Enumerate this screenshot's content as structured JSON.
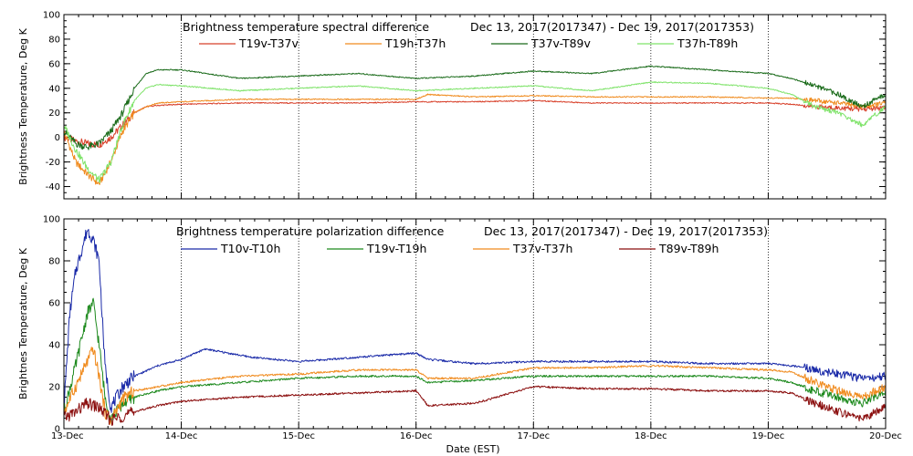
{
  "chart_data": [
    {
      "type": "line",
      "title": "Brightness temperature spectral difference",
      "date_range": "Dec 13, 2017(2017347) - Dec 19, 2017(2017353)",
      "ylabel": "Brightness Temperature, Deg K",
      "xlabel": "",
      "ylim": [
        -50,
        100
      ],
      "yticks": [
        -40,
        -20,
        0,
        20,
        40,
        60,
        80,
        100
      ],
      "xlim": [
        0,
        7
      ],
      "grid": true,
      "legend_position": "top",
      "series": [
        {
          "name": "T19v-T37v",
          "color": "#d8402a",
          "x": [
            0,
            0.1,
            0.2,
            0.3,
            0.4,
            0.5,
            0.6,
            0.7,
            0.8,
            1,
            1.5,
            2,
            2.5,
            3,
            3.5,
            4,
            4.5,
            5,
            5.5,
            6,
            6.2,
            6.4,
            6.6,
            6.8,
            7
          ],
          "y": [
            0,
            -3,
            -5,
            -6,
            0,
            10,
            20,
            25,
            26,
            27,
            28,
            28,
            28,
            29,
            29,
            30,
            28,
            28,
            28,
            28,
            27,
            25,
            24,
            23,
            24
          ]
        },
        {
          "name": "T19h-T37h",
          "color": "#f08b1e",
          "x": [
            0,
            0.1,
            0.2,
            0.3,
            0.4,
            0.5,
            0.6,
            0.7,
            0.8,
            1,
            1.5,
            2,
            2.5,
            3,
            3.1,
            3.5,
            4,
            4.5,
            5,
            5.5,
            6,
            6.2,
            6.4,
            6.6,
            6.8,
            7
          ],
          "y": [
            5,
            -20,
            -30,
            -38,
            -20,
            5,
            20,
            25,
            28,
            29,
            31,
            31,
            31,
            31,
            35,
            33,
            34,
            33,
            33,
            33,
            32,
            32,
            30,
            28,
            25,
            28
          ]
        },
        {
          "name": "T37v-T89v",
          "color": "#1a6b1a",
          "x": [
            0,
            0.1,
            0.2,
            0.3,
            0.4,
            0.5,
            0.6,
            0.7,
            0.8,
            1,
            1.5,
            2,
            2.5,
            3,
            3.5,
            4,
            4.5,
            5,
            5.5,
            6,
            6.2,
            6.4,
            6.6,
            6.8,
            7
          ],
          "y": [
            5,
            -5,
            -8,
            -5,
            5,
            20,
            40,
            52,
            55,
            55,
            48,
            50,
            52,
            48,
            50,
            54,
            52,
            58,
            55,
            52,
            48,
            42,
            35,
            25,
            35
          ]
        },
        {
          "name": "T37h-T89h",
          "color": "#7fe36a",
          "x": [
            0,
            0.1,
            0.2,
            0.3,
            0.4,
            0.5,
            0.6,
            0.7,
            0.8,
            1,
            1.5,
            2,
            2.5,
            3,
            3.5,
            4,
            4.5,
            5,
            5.5,
            6,
            6.2,
            6.4,
            6.6,
            6.8,
            7
          ],
          "y": [
            10,
            -10,
            -25,
            -35,
            -20,
            10,
            30,
            40,
            43,
            42,
            38,
            40,
            42,
            38,
            40,
            42,
            38,
            45,
            44,
            40,
            35,
            25,
            20,
            10,
            25
          ]
        }
      ]
    },
    {
      "type": "line",
      "title": "Brightness temperature polarization difference",
      "date_range": "Dec 13, 2017(2017347) - Dec 19, 2017(2017353)",
      "ylabel": "Brightnes Temperature, Deg K",
      "xlabel": "Date (EST)",
      "ylim": [
        0,
        100
      ],
      "yticks": [
        0,
        20,
        40,
        60,
        80,
        100
      ],
      "xlim": [
        0,
        7
      ],
      "xticks": [
        "13-Dec",
        "14-Dec",
        "15-Dec",
        "16-Dec",
        "17-Dec",
        "18-Dec",
        "19-Dec",
        "20-Dec"
      ],
      "grid": true,
      "legend_position": "top",
      "series": [
        {
          "name": "T10v-T10h",
          "color": "#1a2aa8",
          "x": [
            0,
            0.05,
            0.1,
            0.15,
            0.2,
            0.25,
            0.3,
            0.35,
            0.4,
            0.45,
            0.5,
            0.6,
            0.8,
            1,
            1.2,
            1.4,
            1.6,
            2,
            2.5,
            3,
            3.1,
            3.5,
            4,
            4.5,
            5,
            5.5,
            6,
            6.2,
            6.4,
            6.6,
            6.8,
            7
          ],
          "y": [
            10,
            55,
            75,
            85,
            95,
            90,
            80,
            30,
            10,
            15,
            20,
            25,
            30,
            33,
            38,
            36,
            34,
            32,
            34,
            36,
            33,
            31,
            32,
            32,
            32,
            31,
            31,
            30,
            28,
            26,
            24,
            25
          ]
        },
        {
          "name": "T19v-T19h",
          "color": "#1e8a1e",
          "x": [
            0,
            0.1,
            0.2,
            0.25,
            0.3,
            0.35,
            0.4,
            0.5,
            0.6,
            0.8,
            1,
            1.5,
            2,
            2.5,
            3,
            3.1,
            3.5,
            4,
            4.5,
            5,
            5.5,
            6,
            6.2,
            6.4,
            6.6,
            6.8,
            7
          ],
          "y": [
            8,
            30,
            55,
            60,
            40,
            15,
            5,
            12,
            15,
            18,
            20,
            22,
            24,
            25,
            25,
            22,
            23,
            25,
            25,
            25,
            25,
            24,
            22,
            18,
            15,
            12,
            18
          ]
        },
        {
          "name": "T37v-T37h",
          "color": "#f08b1e",
          "x": [
            0,
            0.1,
            0.2,
            0.25,
            0.3,
            0.35,
            0.4,
            0.5,
            0.6,
            0.8,
            1,
            1.5,
            2,
            2.5,
            3,
            3.1,
            3.5,
            4,
            4.5,
            5,
            5.5,
            6,
            6.2,
            6.4,
            6.6,
            6.8,
            7
          ],
          "y": [
            8,
            20,
            32,
            38,
            25,
            8,
            4,
            14,
            18,
            20,
            22,
            25,
            26,
            28,
            28,
            24,
            24,
            29,
            29,
            30,
            29,
            28,
            27,
            22,
            18,
            15,
            20
          ]
        },
        {
          "name": "T89v-T89h",
          "color": "#8b0e0e",
          "x": [
            0,
            0.1,
            0.2,
            0.3,
            0.4,
            0.5,
            0.6,
            0.8,
            1,
            1.5,
            2,
            2.5,
            3,
            3.1,
            3.5,
            4,
            4.5,
            5,
            5.5,
            6,
            6.2,
            6.4,
            6.6,
            6.8,
            7
          ],
          "y": [
            5,
            8,
            12,
            10,
            4,
            6,
            8,
            11,
            13,
            15,
            16,
            17,
            18,
            11,
            12,
            20,
            19,
            19,
            18,
            18,
            17,
            12,
            8,
            5,
            10
          ]
        }
      ]
    }
  ]
}
